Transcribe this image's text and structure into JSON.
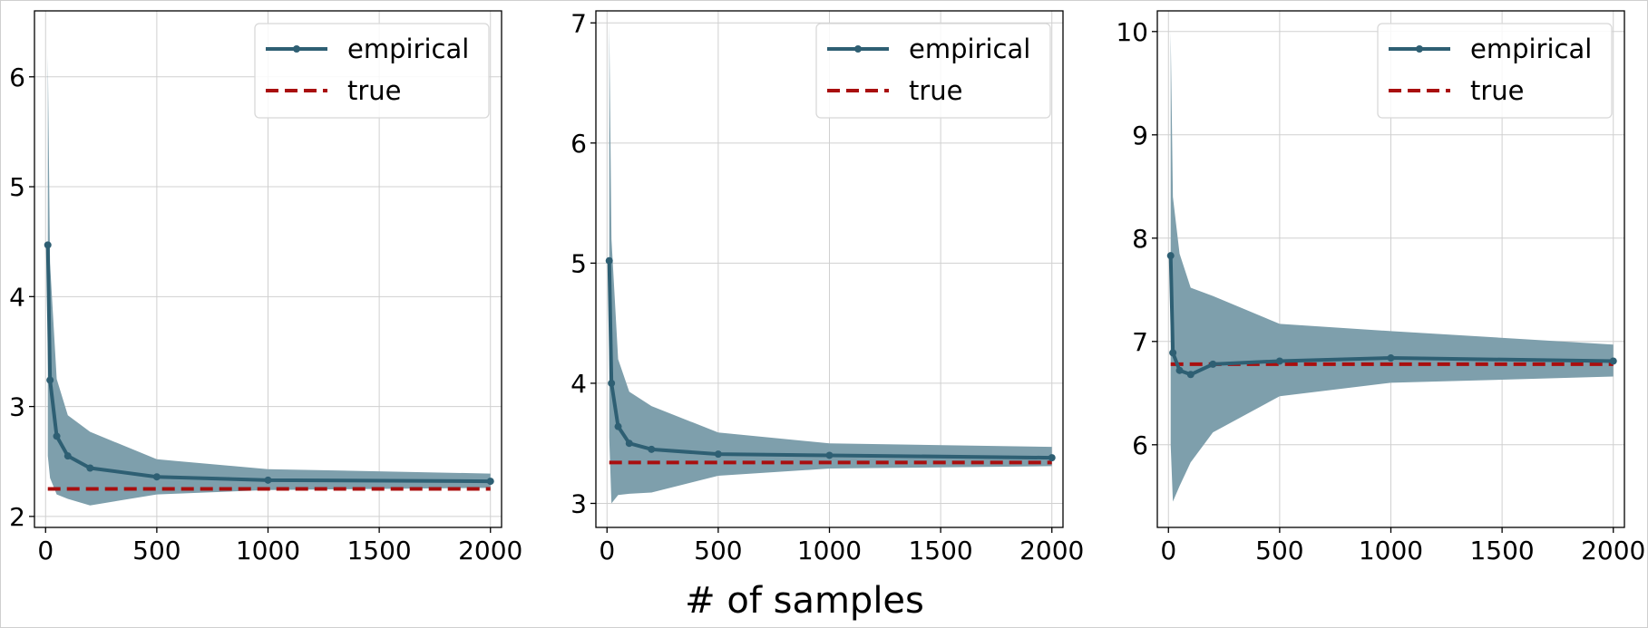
{
  "xlabel": "# of samples",
  "colors": {
    "empirical": "#2e5f73",
    "band": "#7e9fac",
    "true": "#a90f0f"
  },
  "chart_data": [
    {
      "type": "line",
      "xlim": [
        -50,
        2050
      ],
      "ylim": [
        1.9,
        6.6
      ],
      "xticks": [
        0,
        500,
        1000,
        1500,
        2000
      ],
      "yticks": [
        2,
        3,
        4,
        5,
        6
      ],
      "grid": true,
      "legend_position": "top-right",
      "x": [
        10,
        20,
        50,
        100,
        200,
        500,
        1000,
        2000
      ],
      "series": [
        {
          "name": "empirical",
          "values": [
            4.47,
            3.24,
            2.73,
            2.55,
            2.44,
            2.36,
            2.33,
            2.32
          ]
        },
        {
          "name": "true",
          "values": [
            2.25,
            2.25,
            2.25,
            2.25,
            2.25,
            2.25,
            2.25,
            2.25
          ]
        }
      ],
      "band": {
        "lower": [
          2.55,
          2.35,
          2.2,
          2.16,
          2.1,
          2.2,
          2.24,
          2.26
        ],
        "upper": [
          6.2,
          4.3,
          3.25,
          2.92,
          2.77,
          2.52,
          2.43,
          2.39
        ]
      }
    },
    {
      "type": "line",
      "xlim": [
        -50,
        2050
      ],
      "ylim": [
        2.8,
        7.1
      ],
      "xticks": [
        0,
        500,
        1000,
        1500,
        2000
      ],
      "yticks": [
        3,
        4,
        5,
        6,
        7
      ],
      "grid": true,
      "legend_position": "top-right",
      "x": [
        10,
        20,
        50,
        100,
        200,
        500,
        1000,
        2000
      ],
      "series": [
        {
          "name": "empirical",
          "values": [
            5.02,
            4.0,
            3.64,
            3.5,
            3.45,
            3.41,
            3.4,
            3.38
          ]
        },
        {
          "name": "true",
          "values": [
            3.34,
            3.34,
            3.34,
            3.34,
            3.34,
            3.34,
            3.34,
            3.34
          ]
        }
      ],
      "band": {
        "lower": [
          3.55,
          3.0,
          3.07,
          3.08,
          3.09,
          3.23,
          3.29,
          3.31
        ],
        "upper": [
          7.0,
          5.2,
          4.2,
          3.93,
          3.81,
          3.59,
          3.5,
          3.47
        ]
      }
    },
    {
      "type": "line",
      "xlim": [
        -50,
        2050
      ],
      "ylim": [
        5.2,
        10.2
      ],
      "xticks": [
        0,
        500,
        1000,
        1500,
        2000
      ],
      "yticks": [
        6,
        7,
        8,
        9,
        10
      ],
      "grid": true,
      "legend_position": "top-right",
      "x": [
        10,
        20,
        50,
        100,
        200,
        500,
        1000,
        2000
      ],
      "series": [
        {
          "name": "empirical",
          "values": [
            7.83,
            6.89,
            6.72,
            6.68,
            6.78,
            6.81,
            6.84,
            6.81
          ]
        },
        {
          "name": "true",
          "values": [
            6.78,
            6.78,
            6.78,
            6.78,
            6.78,
            6.78,
            6.78,
            6.78
          ]
        }
      ],
      "band": {
        "lower": [
          6.0,
          5.45,
          5.6,
          5.83,
          6.12,
          6.47,
          6.6,
          6.66
        ],
        "upper": [
          10.0,
          8.4,
          7.85,
          7.52,
          7.44,
          7.17,
          7.1,
          6.97
        ]
      }
    }
  ]
}
